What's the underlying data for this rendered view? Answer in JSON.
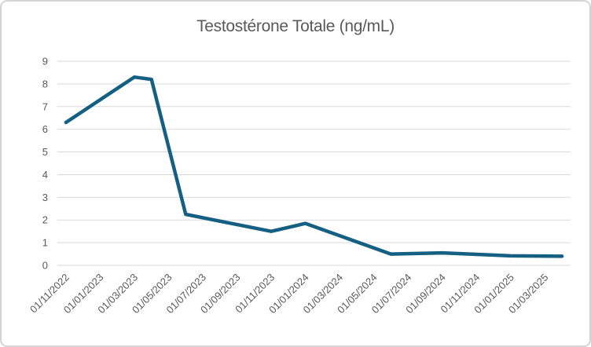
{
  "chart_data": {
    "type": "line",
    "title": "Testostérone Totale (ng/mL)",
    "legend": "none",
    "grid": "horizontal",
    "x_axis": {
      "type": "category-monthly",
      "first_month": "11/2022",
      "last_month": "04/2025",
      "label_interval_months": 2,
      "tick_labels": [
        "01/11/2022",
        "01/01/2023",
        "01/03/2023",
        "01/05/2023",
        "01/07/2023",
        "01/09/2023",
        "01/11/2023",
        "01/01/2024",
        "01/03/2024",
        "01/05/2024",
        "01/07/2024",
        "01/09/2024",
        "01/11/2024",
        "01/01/2025",
        "01/03/2025"
      ]
    },
    "y_axis": {
      "min": 0,
      "max": 9,
      "tick_interval": 1,
      "tick_labels": [
        "0",
        "1",
        "2",
        "3",
        "4",
        "5",
        "6",
        "7",
        "8",
        "9"
      ]
    },
    "series": [
      {
        "color": "#156082",
        "points": [
          {
            "date": "01/11/2022",
            "value": 6.3
          },
          {
            "date": "01/03/2023",
            "value": 8.3
          },
          {
            "date": "01/04/2023",
            "value": 8.2
          },
          {
            "date": "01/06/2023",
            "value": 2.25
          },
          {
            "date": "01/11/2023",
            "value": 1.5
          },
          {
            "date": "01/01/2024",
            "value": 1.85
          },
          {
            "date": "01/06/2024",
            "value": 0.5
          },
          {
            "date": "01/09/2024",
            "value": 0.55
          },
          {
            "date": "01/01/2025",
            "value": 0.42
          },
          {
            "date": "01/04/2025",
            "value": 0.4
          }
        ]
      }
    ],
    "colors": {
      "line": "#156082",
      "title_text": "#595959",
      "axis_text": "#595959",
      "gridline": "#d9d9d9",
      "frame_border": "#d6d4d4",
      "background": "#ffffff"
    }
  }
}
